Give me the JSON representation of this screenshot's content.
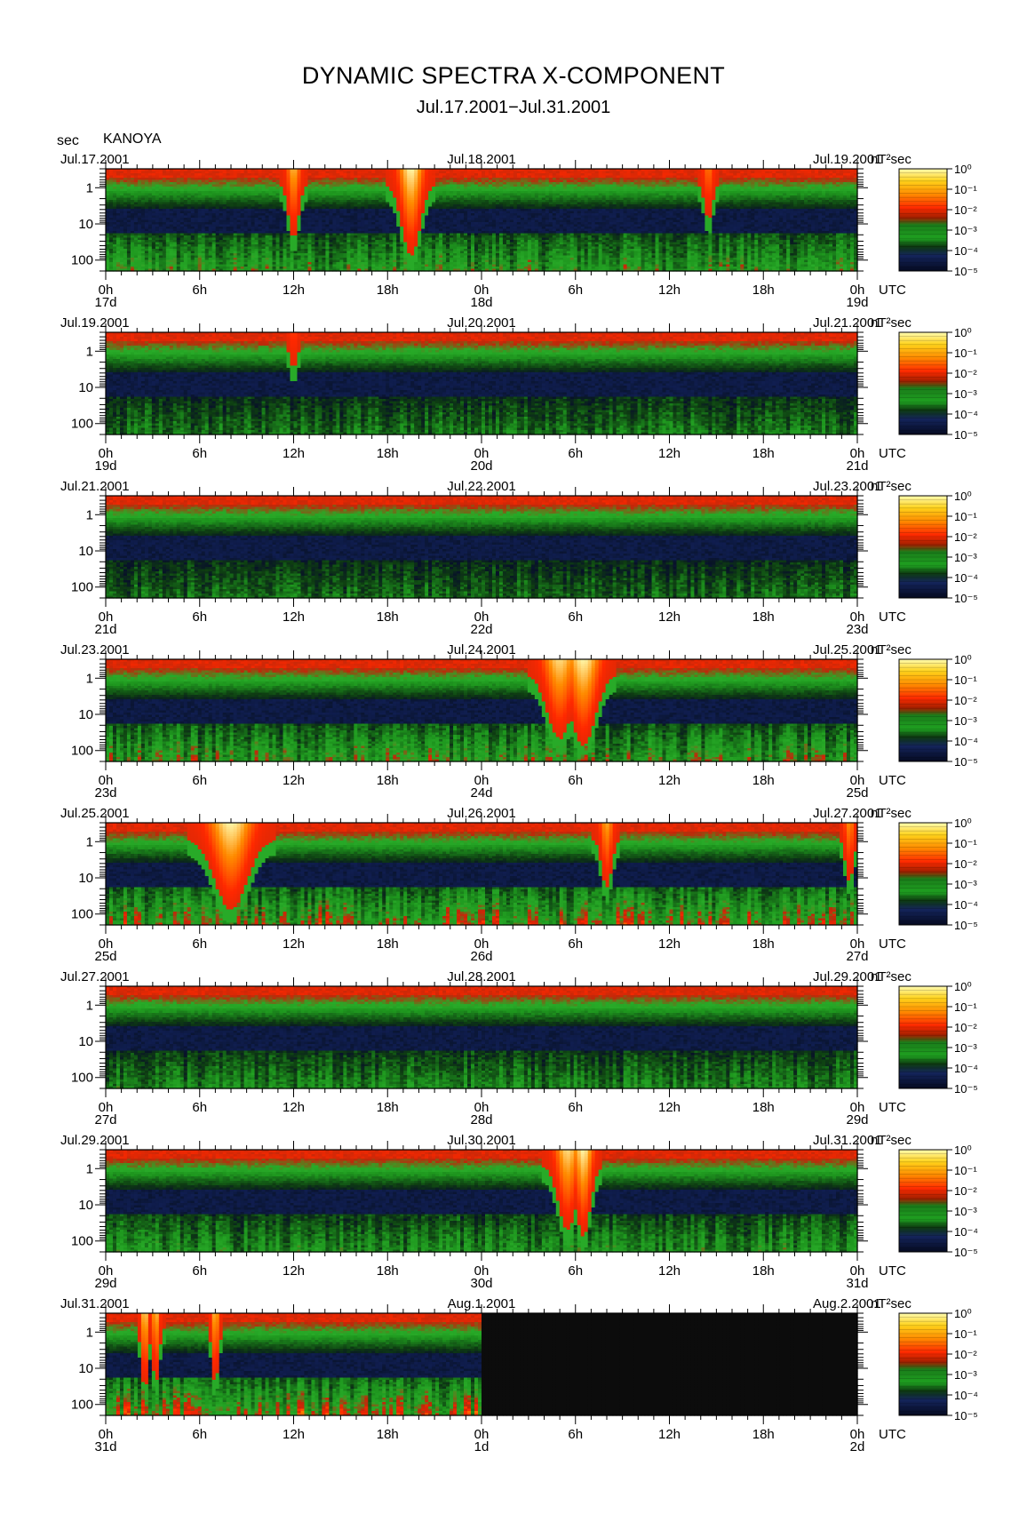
{
  "title": "DYNAMIC SPECTRA X-COMPONENT",
  "subtitle": "Jul.17.2001−Jul.31.2001",
  "y_unit": "sec",
  "station": "KANOYA",
  "colorbar_unit": "nT²sec",
  "time_unit": "UTC",
  "colors": {
    "high": "#fff7a0",
    "mid_high": "#ff2a00",
    "mid": "#1f9a20",
    "low": "#0a1546",
    "none": "#0c0c0c"
  },
  "chart_data": {
    "type": "heatmap",
    "y_axis": {
      "label": "sec",
      "scale": "log",
      "range": [
        0.3,
        200
      ],
      "ticks": [
        1,
        10,
        100
      ],
      "tick_labels": [
        "1",
        "10",
        "100"
      ]
    },
    "x_axis": {
      "tick_labels": [
        "0h",
        "6h",
        "12h",
        "18h",
        "0h",
        "6h",
        "12h",
        "18h",
        "0h"
      ],
      "hours_range": [
        0,
        48
      ]
    },
    "colorbar": {
      "scale": "log",
      "range": [
        1e-05,
        1
      ],
      "tick_labels": [
        "10⁰",
        "10⁻¹",
        "10⁻²",
        "10⁻³",
        "10⁻⁴",
        "10⁻⁵"
      ]
    },
    "panels": [
      {
        "date_left": "Jul.17.2001",
        "date_mid": "Jul.18.2001",
        "date_right": "Jul.19.2001",
        "days": [
          "17d",
          "18d",
          "19d"
        ],
        "events": [
          {
            "hour": 12.0,
            "strength": 0.75,
            "width": 0.5
          },
          {
            "hour": 19.5,
            "strength": 1.0,
            "width": 0.9
          },
          {
            "hour": 38.5,
            "strength": 0.5,
            "width": 0.4
          }
        ],
        "activity": 0.7,
        "no_data_from_hour": null
      },
      {
        "date_left": "Jul.19.2001",
        "date_mid": "Jul.20.2001",
        "date_right": "Jul.21.2001",
        "days": [
          "19d",
          "20d",
          "21d"
        ],
        "events": [
          {
            "hour": 12.0,
            "strength": 0.3,
            "width": 0.3
          }
        ],
        "activity": 0.5,
        "no_data_from_hour": null
      },
      {
        "date_left": "Jul.21.2001",
        "date_mid": "Jul.22.2001",
        "date_right": "Jul.23.2001",
        "days": [
          "21d",
          "22d",
          "23d"
        ],
        "events": [],
        "activity": 0.45,
        "no_data_from_hour": null
      },
      {
        "date_left": "Jul.23.2001",
        "date_mid": "Jul.24.2001",
        "date_right": "Jul.25.2001",
        "days": [
          "23d",
          "24d",
          "25d"
        ],
        "events": [
          {
            "hour": 29.0,
            "strength": 0.9,
            "width": 1.2
          },
          {
            "hour": 30.5,
            "strength": 1.0,
            "width": 1.2
          }
        ],
        "activity": 0.75,
        "no_data_from_hour": null
      },
      {
        "date_left": "Jul.25.2001",
        "date_mid": "Jul.26.2001",
        "date_right": "Jul.27.2001",
        "days": [
          "25d",
          "26d",
          "27d"
        ],
        "events": [
          {
            "hour": 8.0,
            "strength": 1.0,
            "width": 1.6
          },
          {
            "hour": 32.0,
            "strength": 0.7,
            "width": 0.5
          },
          {
            "hour": 47.5,
            "strength": 0.6,
            "width": 0.4
          }
        ],
        "activity": 0.85,
        "no_data_from_hour": null
      },
      {
        "date_left": "Jul.27.2001",
        "date_mid": "Jul.28.2001",
        "date_right": "Jul.29.2001",
        "days": [
          "27d",
          "28d",
          "29d"
        ],
        "events": [],
        "activity": 0.55,
        "no_data_from_hour": null
      },
      {
        "date_left": "Jul.29.2001",
        "date_mid": "Jul.30.2001",
        "date_right": "Jul.31.2001",
        "days": [
          "29d",
          "30d",
          "31d"
        ],
        "events": [
          {
            "hour": 29.5,
            "strength": 0.9,
            "width": 0.9
          },
          {
            "hour": 30.5,
            "strength": 1.0,
            "width": 0.7
          }
        ],
        "activity": 0.6,
        "no_data_from_hour": null
      },
      {
        "date_left": "Jul.31.2001",
        "date_mid": "Aug.1.2001",
        "date_right": "Aug.2.2001",
        "days": [
          "31d",
          "1d",
          "2d"
        ],
        "events": [
          {
            "hour": 2.5,
            "strength": 0.9,
            "width": 0.3
          },
          {
            "hour": 3.2,
            "strength": 0.8,
            "width": 0.3
          },
          {
            "hour": 7.0,
            "strength": 0.8,
            "width": 0.3
          }
        ],
        "activity": 0.9,
        "no_data_from_hour": 24
      }
    ]
  }
}
